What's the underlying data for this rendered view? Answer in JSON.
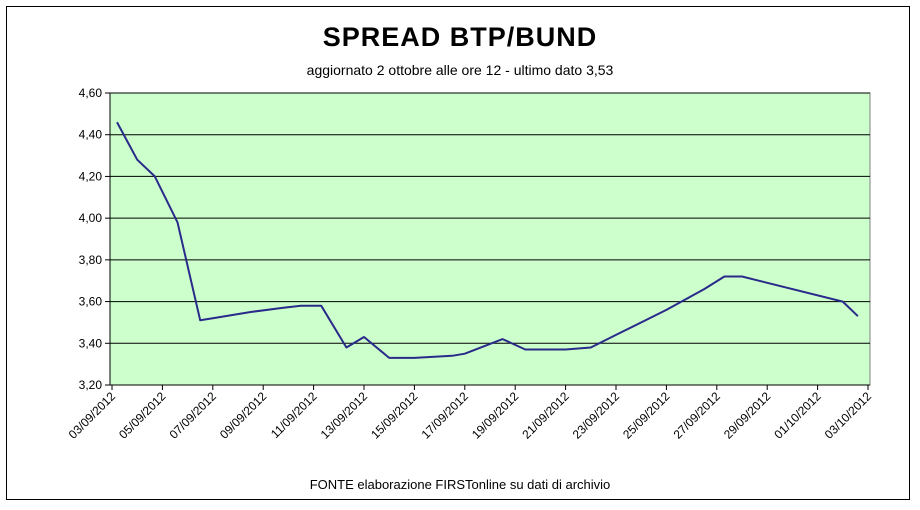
{
  "chart_data": {
    "type": "line",
    "title": "SPREAD  BTP/BUND",
    "subtitle": "aggiornato 2 ottobre alle ore 12 - ultimo dato 3,53",
    "source": "FONTE elaborazione FIRSTonline su dati di archivio",
    "y_ticks": [
      "3,20",
      "3,40",
      "3,60",
      "3,80",
      "4,00",
      "4,20",
      "4,40",
      "4,60"
    ],
    "ylim": [
      3.2,
      4.6
    ],
    "x_ticks": [
      "03/09/2012",
      "05/09/2012",
      "07/09/2012",
      "09/09/2012",
      "11/09/2012",
      "13/09/2012",
      "15/09/2012",
      "17/09/2012",
      "19/09/2012",
      "21/09/2012",
      "23/09/2012",
      "25/09/2012",
      "27/09/2012",
      "29/09/2012",
      "01/10/2012",
      "03/10/2012"
    ],
    "x_days": [
      0,
      2,
      4,
      6,
      8,
      10,
      12,
      14,
      16,
      18,
      20,
      22,
      24,
      26,
      28,
      30
    ],
    "grid": true,
    "legend": "none",
    "series": [
      {
        "x": [
          0.2,
          1,
          1.7,
          2.6,
          3.5,
          4,
          5.5,
          6.8,
          7.5,
          8.3,
          9.3,
          10,
          11,
          12,
          13.5,
          14,
          15.5,
          16.4,
          17,
          18,
          19,
          20,
          22,
          23.5,
          24.3,
          25,
          26,
          29,
          29.6
        ],
        "y": [
          4.46,
          4.28,
          4.2,
          3.98,
          3.51,
          3.52,
          3.55,
          3.57,
          3.58,
          3.58,
          3.38,
          3.43,
          3.33,
          3.33,
          3.34,
          3.35,
          3.42,
          3.37,
          3.37,
          3.37,
          3.38,
          3.44,
          3.56,
          3.66,
          3.72,
          3.72,
          3.69,
          3.6,
          3.53
        ]
      }
    ],
    "colors": {
      "plot_bg": "#ccffcc",
      "line": "#2a2a8a",
      "grid": "#000000"
    }
  }
}
